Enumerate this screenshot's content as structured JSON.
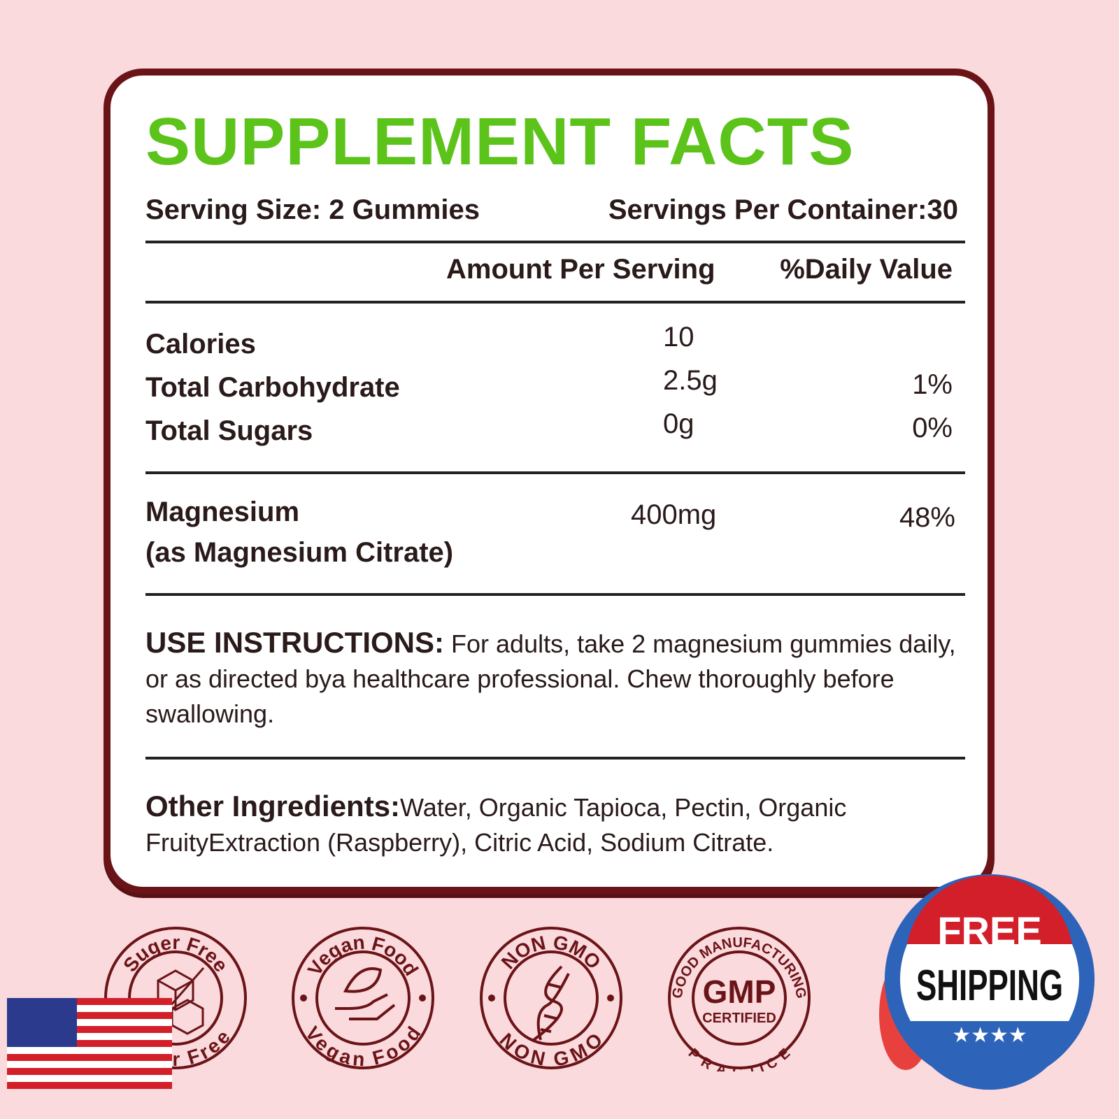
{
  "title": "SUPPLEMENT FACTS",
  "serving_size": "Serving Size: 2 Gummies",
  "servings_per_container": "Servings Per Container:30",
  "headers": {
    "amount": "Amount Per Serving",
    "dv": "%Daily Value"
  },
  "rows": [
    {
      "name": "Calories",
      "amount": "10",
      "dv": ""
    },
    {
      "name": "Total Carbohydrate",
      "amount": "2.5g",
      "dv": "1%"
    },
    {
      "name": "Total Sugars",
      "amount": "0g",
      "dv": "0%"
    }
  ],
  "magnesium": {
    "name": "Magnesium",
    "sub": "(as Magnesium Citrate)",
    "amount": "400mg",
    "dv": "48%"
  },
  "instructions": {
    "label": "USE INSTRUCTIONS:",
    "text": " For adults, take 2 magnesium gummies daily, or as directed bya healthcare professional. Chew thoroughly before swallowing."
  },
  "ingredients": {
    "label": "Other Ingredients:",
    "text": "Water, Organic Tapioca, Pectin, Organic FruityExtraction (Raspberry), Citric Acid, Sodium Citrate."
  },
  "badges": [
    {
      "top": "Suger Free",
      "bottom": "Suger Free",
      "icon": "sugar-cubes-icon"
    },
    {
      "top": "Vegan Food",
      "bottom": "Vegan Food",
      "icon": "leaf-hand-icon"
    },
    {
      "top": "NON GMO",
      "bottom": "NON GMO",
      "icon": "dna-icon"
    },
    {
      "top": "GOOD MANUFACTURING",
      "bottom": "PRACTICE",
      "center": "GMP",
      "center2": "CERTIFIED",
      "icon": "gmp-icon"
    }
  ],
  "shipping": {
    "line1": "FREE",
    "line2": "SHIPPING"
  },
  "colors": {
    "background": "#fadadd",
    "border": "#6b1418",
    "title": "#5cc31a"
  }
}
